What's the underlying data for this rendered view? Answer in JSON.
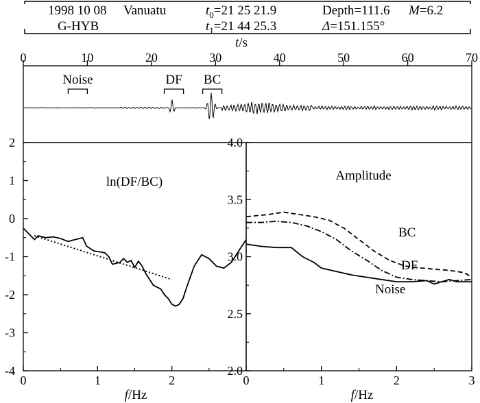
{
  "header": {
    "line1": [
      {
        "text": "1998 10 08"
      },
      {
        "text": "Vanuatu"
      },
      {
        "text": "t",
        "sub": "0",
        "rest": "=21 25 21.9",
        "italic": true
      },
      {
        "text": "Depth=111.6"
      },
      {
        "text": "M",
        "rest": "=6.2",
        "italic": true
      }
    ],
    "line2": [
      {
        "text": "G-HYB"
      },
      {
        "text": "t",
        "sub": "1",
        "rest": "=21 44 25.3",
        "italic": true
      },
      {
        "text": "Δ",
        "rest": "=151.155°",
        "italic": true
      }
    ]
  },
  "chart_data": [
    {
      "type": "line",
      "name": "seismogram",
      "xlabel": "t/s",
      "xlabel_italic": "t",
      "xlabel_rest": "/s",
      "xlim": [
        0,
        70
      ],
      "xticks": [
        0,
        10,
        20,
        30,
        40,
        50,
        60,
        70
      ],
      "windows": [
        {
          "label": "Noise",
          "x": [
            7,
            10
          ]
        },
        {
          "label": "DF",
          "x": [
            22,
            25
          ]
        },
        {
          "label": "BC",
          "x": [
            28,
            31
          ]
        }
      ]
    },
    {
      "type": "line",
      "name": "ln-ratio",
      "title": "ln(DF/BC)",
      "xlabel": "f/Hz",
      "xlabel_italic": "f",
      "xlabel_rest": "/Hz",
      "xlim": [
        0,
        3
      ],
      "ylim": [
        -4,
        2
      ],
      "xticks": [
        0,
        1,
        2
      ],
      "yticks": [
        2,
        1,
        0,
        -1,
        -2,
        -3,
        -4
      ],
      "series": [
        {
          "style": "solid",
          "x": [
            0,
            0.1,
            0.15,
            0.2,
            0.3,
            0.4,
            0.5,
            0.6,
            0.7,
            0.8,
            0.85,
            0.95,
            1.05,
            1.1,
            1.15,
            1.2,
            1.3,
            1.35,
            1.4,
            1.45,
            1.5,
            1.55,
            1.6,
            1.65,
            1.75,
            1.85,
            1.9,
            1.95,
            2.0,
            2.05,
            2.1,
            2.15,
            2.2,
            2.3,
            2.4,
            2.5,
            2.6,
            2.7,
            2.8,
            3.0
          ],
          "y": [
            -0.25,
            -0.45,
            -0.55,
            -0.45,
            -0.5,
            -0.48,
            -0.52,
            -0.6,
            -0.55,
            -0.5,
            -0.72,
            -0.85,
            -0.88,
            -0.9,
            -1.0,
            -1.2,
            -1.15,
            -1.05,
            -1.15,
            -1.1,
            -1.28,
            -1.12,
            -1.25,
            -1.45,
            -1.75,
            -1.85,
            -2.0,
            -2.1,
            -2.25,
            -2.3,
            -2.25,
            -2.1,
            -1.8,
            -1.25,
            -0.95,
            -1.05,
            -1.25,
            -1.3,
            -1.15,
            -0.55
          ]
        },
        {
          "style": "dotted",
          "x": [
            0.15,
            2.0
          ],
          "y": [
            -0.45,
            -1.6
          ]
        }
      ]
    },
    {
      "type": "line",
      "name": "amplitude",
      "title": "Amplitude",
      "xlabel": "f/Hz",
      "xlabel_italic": "f",
      "xlabel_rest": "/Hz",
      "xlim": [
        0,
        3
      ],
      "ylim": [
        2.0,
        4.0
      ],
      "xticks": [
        0,
        1,
        2,
        3
      ],
      "yticks": [
        4.0,
        3.5,
        3.0,
        2.5,
        2.0
      ],
      "series": [
        {
          "name": "BC",
          "style": "dashed",
          "x": [
            0,
            0.3,
            0.5,
            0.7,
            0.9,
            1.1,
            1.3,
            1.5,
            1.7,
            1.9,
            2.1,
            2.3,
            2.35,
            2.5,
            2.7,
            2.9,
            3.0
          ],
          "y": [
            3.35,
            3.37,
            3.39,
            3.37,
            3.35,
            3.32,
            3.25,
            3.15,
            3.05,
            2.97,
            2.92,
            2.9,
            2.9,
            2.89,
            2.88,
            2.86,
            2.82
          ]
        },
        {
          "name": "DF",
          "style": "dashdot",
          "x": [
            0,
            0.2,
            0.4,
            0.6,
            0.8,
            1.0,
            1.2,
            1.4,
            1.6,
            1.8,
            2.0,
            2.2,
            2.4,
            2.6,
            2.8,
            3.0
          ],
          "y": [
            3.3,
            3.3,
            3.31,
            3.3,
            3.27,
            3.22,
            3.15,
            3.05,
            2.97,
            2.88,
            2.82,
            2.8,
            2.79,
            2.78,
            2.79,
            2.8
          ]
        },
        {
          "name": "Noise",
          "style": "solid",
          "x": [
            0,
            0.2,
            0.4,
            0.6,
            0.75,
            0.9,
            1.0,
            1.2,
            1.4,
            1.6,
            1.8,
            2.0,
            2.2,
            2.4,
            2.5,
            2.6,
            2.7,
            2.8,
            3.0
          ],
          "y": [
            3.11,
            3.09,
            3.08,
            3.08,
            3.0,
            2.95,
            2.9,
            2.87,
            2.84,
            2.82,
            2.8,
            2.78,
            2.78,
            2.79,
            2.76,
            2.78,
            2.8,
            2.78,
            2.78
          ]
        }
      ]
    }
  ]
}
